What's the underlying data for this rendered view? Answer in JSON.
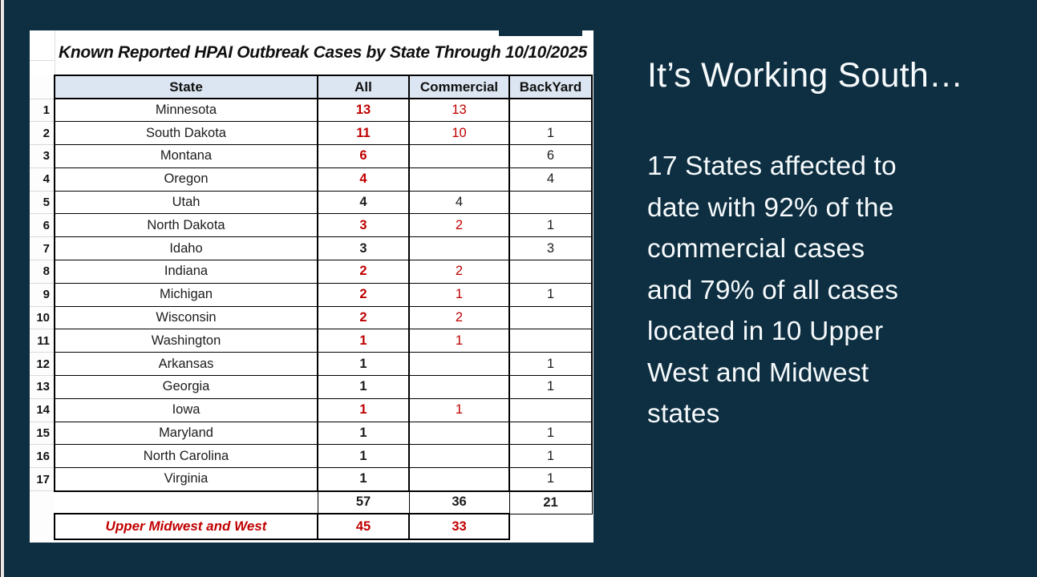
{
  "slide": {
    "background_color": "#0e2f41",
    "heading": "It’s Working South…",
    "body_text": "17 States affected to\ndate with 92% of the\ncommercial cases\nand 79% of all cases\nlocated in 10 Upper\nWest and Midwest\nstates"
  },
  "table": {
    "title": "Known Reported HPAI Outbreak Cases by State Through 10/10/2025",
    "columns": [
      "State",
      "All",
      "Commercial",
      "BackYard"
    ],
    "colors": {
      "value_red": "#c00000",
      "header_fill": "#dce6f2"
    },
    "rows": [
      {
        "num": "1",
        "state": "Minnesota",
        "all": "13",
        "all_color": "red",
        "commercial": "13",
        "commercial_color": "red",
        "backyard": ""
      },
      {
        "num": "2",
        "state": "South Dakota",
        "all": "11",
        "all_color": "red",
        "commercial": "10",
        "commercial_color": "red",
        "backyard": "1"
      },
      {
        "num": "3",
        "state": "Montana",
        "all": "6",
        "all_color": "red",
        "commercial": "",
        "commercial_color": "black",
        "backyard": "6"
      },
      {
        "num": "4",
        "state": "Oregon",
        "all": "4",
        "all_color": "red",
        "commercial": "",
        "commercial_color": "black",
        "backyard": "4"
      },
      {
        "num": "5",
        "state": "Utah",
        "all": "4",
        "all_color": "black",
        "commercial": "4",
        "commercial_color": "black",
        "backyard": ""
      },
      {
        "num": "6",
        "state": "North Dakota",
        "all": "3",
        "all_color": "red",
        "commercial": "2",
        "commercial_color": "red",
        "backyard": "1"
      },
      {
        "num": "7",
        "state": "Idaho",
        "all": "3",
        "all_color": "black",
        "commercial": "",
        "commercial_color": "black",
        "backyard": "3"
      },
      {
        "num": "8",
        "state": "Indiana",
        "all": "2",
        "all_color": "red",
        "commercial": "2",
        "commercial_color": "red",
        "backyard": ""
      },
      {
        "num": "9",
        "state": "Michigan",
        "all": "2",
        "all_color": "red",
        "commercial": "1",
        "commercial_color": "red",
        "backyard": "1"
      },
      {
        "num": "10",
        "state": "Wisconsin",
        "all": "2",
        "all_color": "red",
        "commercial": "2",
        "commercial_color": "red",
        "backyard": ""
      },
      {
        "num": "11",
        "state": "Washington",
        "all": "1",
        "all_color": "red",
        "commercial": "1",
        "commercial_color": "red",
        "backyard": ""
      },
      {
        "num": "12",
        "state": "Arkansas",
        "all": "1",
        "all_color": "black",
        "commercial": "",
        "commercial_color": "black",
        "backyard": "1"
      },
      {
        "num": "13",
        "state": "Georgia",
        "all": "1",
        "all_color": "black",
        "commercial": "",
        "commercial_color": "black",
        "backyard": "1"
      },
      {
        "num": "14",
        "state": "Iowa",
        "all": "1",
        "all_color": "red",
        "commercial": "1",
        "commercial_color": "red",
        "backyard": ""
      },
      {
        "num": "15",
        "state": "Maryland",
        "all": "1",
        "all_color": "black",
        "commercial": "",
        "commercial_color": "black",
        "backyard": "1"
      },
      {
        "num": "16",
        "state": "North Carolina",
        "all": "1",
        "all_color": "black",
        "commercial": "",
        "commercial_color": "black",
        "backyard": "1"
      },
      {
        "num": "17",
        "state": "Virginia",
        "all": "1",
        "all_color": "black",
        "commercial": "",
        "commercial_color": "black",
        "backyard": "1"
      }
    ],
    "totals": {
      "all": "57",
      "commercial": "36",
      "backyard": "21"
    },
    "summary": {
      "label": "Upper Midwest and West",
      "all": "45",
      "commercial": "33",
      "backyard": ""
    }
  },
  "chart_data": {
    "type": "table",
    "title": "Known Reported HPAI Outbreak Cases by State Through 10/10/2025",
    "columns": [
      "State",
      "All",
      "Commercial",
      "BackYard"
    ],
    "rows": [
      [
        "Minnesota",
        13,
        13,
        null
      ],
      [
        "South Dakota",
        11,
        10,
        1
      ],
      [
        "Montana",
        6,
        null,
        6
      ],
      [
        "Oregon",
        4,
        null,
        4
      ],
      [
        "Utah",
        4,
        4,
        null
      ],
      [
        "North Dakota",
        3,
        2,
        1
      ],
      [
        "Idaho",
        3,
        null,
        3
      ],
      [
        "Indiana",
        2,
        2,
        null
      ],
      [
        "Michigan",
        2,
        1,
        1
      ],
      [
        "Wisconsin",
        2,
        2,
        null
      ],
      [
        "Washington",
        1,
        1,
        null
      ],
      [
        "Arkansas",
        1,
        null,
        1
      ],
      [
        "Georgia",
        1,
        null,
        1
      ],
      [
        "Iowa",
        1,
        1,
        null
      ],
      [
        "Maryland",
        1,
        null,
        1
      ],
      [
        "North Carolina",
        1,
        null,
        1
      ],
      [
        "Virginia",
        1,
        null,
        1
      ]
    ],
    "totals": {
      "All": 57,
      "Commercial": 36,
      "BackYard": 21
    },
    "upper_midwest_and_west": {
      "All": 45,
      "Commercial": 33
    }
  }
}
